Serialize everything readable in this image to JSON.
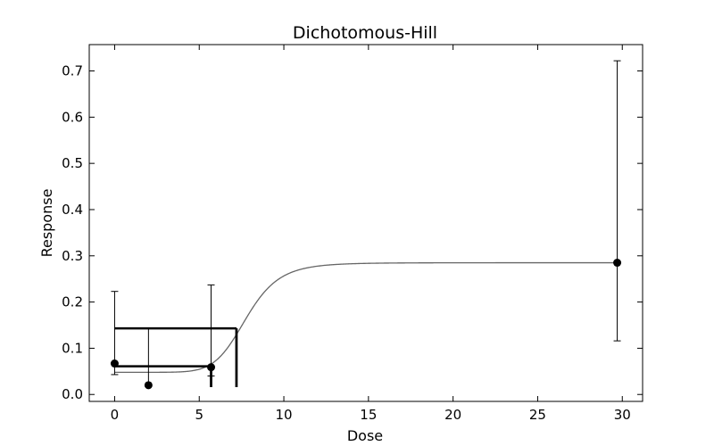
{
  "chart_data": {
    "type": "scatter",
    "title": "Dichotomous-Hill",
    "xlabel": "Dose",
    "ylabel": "Response",
    "xlim": [
      -1.5,
      31.2
    ],
    "ylim": [
      -0.015,
      0.757
    ],
    "x_ticks": [
      0,
      5,
      10,
      15,
      20,
      25,
      30
    ],
    "y_ticks": [
      0.0,
      0.1,
      0.2,
      0.3,
      0.4,
      0.5,
      0.6,
      0.7
    ],
    "x_tick_labels": [
      "0",
      "5",
      "10",
      "15",
      "20",
      "25",
      "30"
    ],
    "y_tick_labels": [
      "0.0",
      "0.1",
      "0.2",
      "0.3",
      "0.4",
      "0.5",
      "0.6",
      "0.7"
    ],
    "grid": false,
    "points": [
      {
        "x": 0.0,
        "y": 0.067,
        "err_low": 0.043,
        "err_high": 0.223
      },
      {
        "x": 2.0,
        "y": 0.02,
        "err_low": 0.02,
        "err_high": 0.143
      },
      {
        "x": 5.7,
        "y": 0.059,
        "err_low": 0.04,
        "err_high": 0.237
      },
      {
        "x": 29.7,
        "y": 0.285,
        "err_low": 0.116,
        "err_high": 0.722
      }
    ],
    "fit_curve": {
      "model": "Dichotomous-Hill",
      "background": 0.048,
      "plateau": 0.285,
      "ec50": 7.8,
      "hill": 8,
      "color": "#666666"
    },
    "bmd_lines": [
      {
        "bmr_response": 0.061,
        "bmdl": 5.7,
        "bmd": 5.7
      },
      {
        "bmr_response": 0.143,
        "bmdl": 7.2,
        "bmd": 7.2
      }
    ]
  }
}
